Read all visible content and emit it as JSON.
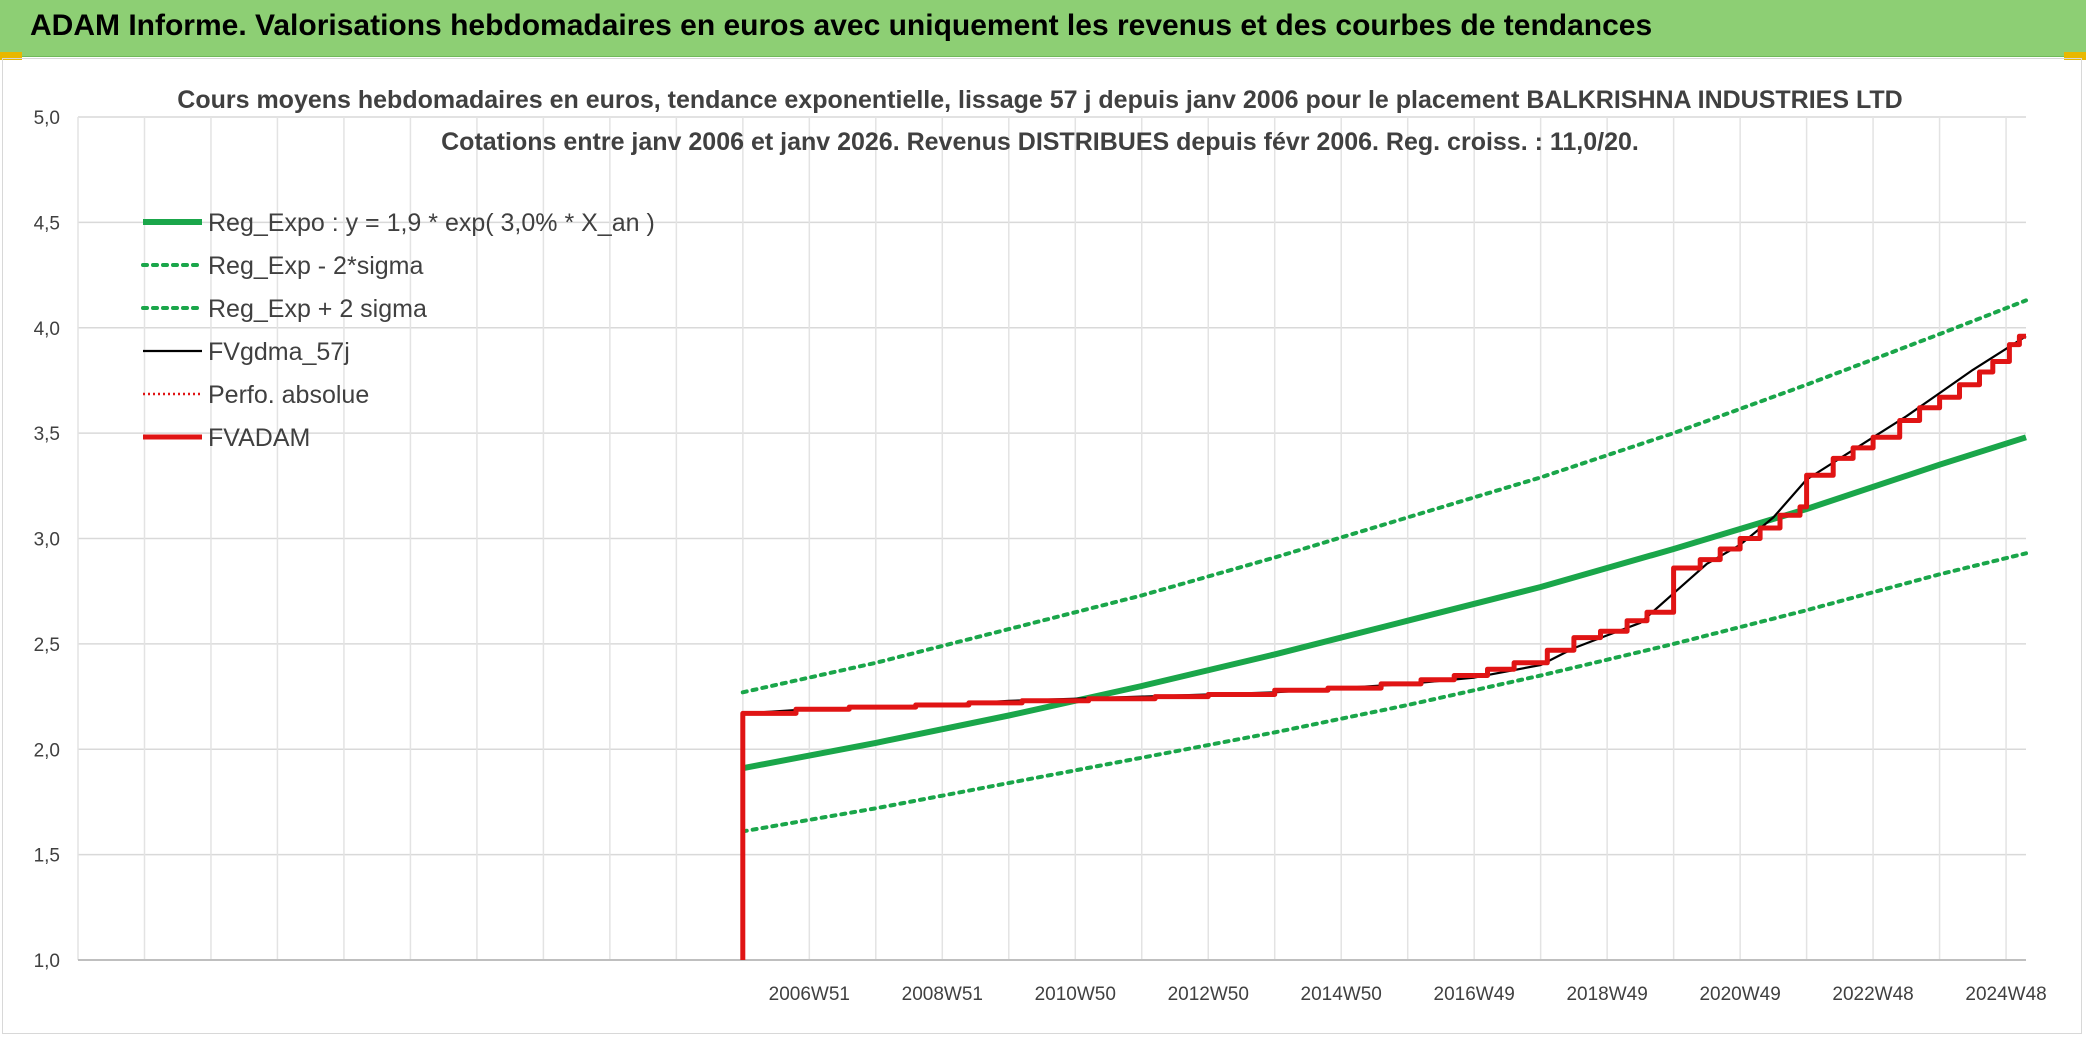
{
  "header": {
    "title": "ADAM Informe. Valorisations hebdomadaires en euros avec uniquement les revenus et des courbes de tendances"
  },
  "chart_data": {
    "type": "line",
    "title_line1": "Cours moyens hebdomadaires en euros, tendance exponentielle, lissage 57 j depuis janv 2006 pour le placement BALKRISHNA INDUSTRIES LTD",
    "title_line2": "Cotations entre janv 2006 et janv 2026. Revenus DISTRIBUES depuis févr 2006. Reg. croiss. : 11,0/20.",
    "ylim": [
      1.0,
      5.0
    ],
    "xlim": [
      1996.0,
      2025.3
    ],
    "y_ticks": [
      {
        "value": 1.0,
        "label": "1,0"
      },
      {
        "value": 1.5,
        "label": "1,5"
      },
      {
        "value": 2.0,
        "label": "2,0"
      },
      {
        "value": 2.5,
        "label": "2,5"
      },
      {
        "value": 3.0,
        "label": "3,0"
      },
      {
        "value": 3.5,
        "label": "3,5"
      },
      {
        "value": 4.0,
        "label": "4,0"
      },
      {
        "value": 4.5,
        "label": "4,5"
      },
      {
        "value": 5.0,
        "label": "5,0"
      }
    ],
    "x_ticks": [
      {
        "value": 2007,
        "label": "2006W51"
      },
      {
        "value": 2009,
        "label": "2008W51"
      },
      {
        "value": 2011,
        "label": "2010W50"
      },
      {
        "value": 2013,
        "label": "2012W50"
      },
      {
        "value": 2015,
        "label": "2014W50"
      },
      {
        "value": 2017,
        "label": "2016W49"
      },
      {
        "value": 2019,
        "label": "2018W49"
      },
      {
        "value": 2021,
        "label": "2020W49"
      },
      {
        "value": 2023,
        "label": "2022W48"
      },
      {
        "value": 2025,
        "label": "2024W48"
      }
    ],
    "grid": true,
    "legend_position": "top-left",
    "series": [
      {
        "name": "Reg_Expo : y = 1,9 * exp( 3,0% *  X_an )",
        "color": "#1aa64a",
        "style": "solid-thick",
        "points": [
          [
            2006.0,
            1.91
          ],
          [
            2008.0,
            2.03
          ],
          [
            2010.0,
            2.16
          ],
          [
            2012.0,
            2.3
          ],
          [
            2014.0,
            2.45
          ],
          [
            2016.0,
            2.61
          ],
          [
            2018.0,
            2.77
          ],
          [
            2020.0,
            2.95
          ],
          [
            2022.0,
            3.14
          ],
          [
            2024.0,
            3.35
          ],
          [
            2025.3,
            3.48
          ]
        ]
      },
      {
        "name": "Reg_Exp - 2*sigma",
        "color": "#1aa64a",
        "style": "dotted",
        "points": [
          [
            2006.0,
            1.61
          ],
          [
            2008.0,
            1.72
          ],
          [
            2010.0,
            1.84
          ],
          [
            2012.0,
            1.96
          ],
          [
            2014.0,
            2.08
          ],
          [
            2016.0,
            2.21
          ],
          [
            2018.0,
            2.35
          ],
          [
            2020.0,
            2.5
          ],
          [
            2022.0,
            2.66
          ],
          [
            2024.0,
            2.83
          ],
          [
            2025.3,
            2.93
          ]
        ]
      },
      {
        "name": "Reg_Exp + 2 sigma",
        "color": "#1aa64a",
        "style": "dotted",
        "points": [
          [
            2006.0,
            2.27
          ],
          [
            2008.0,
            2.41
          ],
          [
            2010.0,
            2.57
          ],
          [
            2012.0,
            2.73
          ],
          [
            2014.0,
            2.91
          ],
          [
            2016.0,
            3.1
          ],
          [
            2018.0,
            3.29
          ],
          [
            2020.0,
            3.5
          ],
          [
            2022.0,
            3.73
          ],
          [
            2024.0,
            3.97
          ],
          [
            2025.3,
            4.13
          ]
        ]
      },
      {
        "name": "FVgdma_57j",
        "color": "#000000",
        "style": "solid-thin",
        "points": [
          [
            2006.0,
            2.17
          ],
          [
            2007.0,
            2.19
          ],
          [
            2008.0,
            2.2
          ],
          [
            2009.0,
            2.21
          ],
          [
            2010.0,
            2.23
          ],
          [
            2011.0,
            2.24
          ],
          [
            2012.0,
            2.25
          ],
          [
            2013.0,
            2.26
          ],
          [
            2014.0,
            2.27
          ],
          [
            2015.0,
            2.29
          ],
          [
            2016.0,
            2.31
          ],
          [
            2017.0,
            2.34
          ],
          [
            2018.0,
            2.4
          ],
          [
            2018.5,
            2.48
          ],
          [
            2019.0,
            2.54
          ],
          [
            2019.5,
            2.6
          ],
          [
            2020.0,
            2.74
          ],
          [
            2020.5,
            2.88
          ],
          [
            2021.0,
            2.97
          ],
          [
            2021.5,
            3.1
          ],
          [
            2022.0,
            3.28
          ],
          [
            2022.5,
            3.38
          ],
          [
            2023.0,
            3.48
          ],
          [
            2023.5,
            3.58
          ],
          [
            2024.0,
            3.69
          ],
          [
            2024.5,
            3.8
          ],
          [
            2025.0,
            3.9
          ],
          [
            2025.3,
            3.96
          ]
        ]
      },
      {
        "name": "Perfo. absolue",
        "color": "#e01414",
        "style": "dotted",
        "points": []
      },
      {
        "name": "FVADAM",
        "color": "#e01414",
        "style": "solid-thick",
        "points": [
          [
            2006.0,
            1.0
          ],
          [
            2006.0,
            2.17
          ],
          [
            2006.8,
            2.17
          ],
          [
            2006.8,
            2.19
          ],
          [
            2007.6,
            2.19
          ],
          [
            2007.6,
            2.2
          ],
          [
            2008.6,
            2.2
          ],
          [
            2008.6,
            2.21
          ],
          [
            2009.4,
            2.21
          ],
          [
            2009.4,
            2.22
          ],
          [
            2010.2,
            2.22
          ],
          [
            2010.2,
            2.23
          ],
          [
            2011.2,
            2.23
          ],
          [
            2011.2,
            2.24
          ],
          [
            2012.2,
            2.24
          ],
          [
            2012.2,
            2.25
          ],
          [
            2013.0,
            2.25
          ],
          [
            2013.0,
            2.26
          ],
          [
            2014.0,
            2.26
          ],
          [
            2014.0,
            2.28
          ],
          [
            2014.8,
            2.28
          ],
          [
            2014.8,
            2.29
          ],
          [
            2015.6,
            2.29
          ],
          [
            2015.6,
            2.31
          ],
          [
            2016.2,
            2.31
          ],
          [
            2016.2,
            2.33
          ],
          [
            2016.7,
            2.33
          ],
          [
            2016.7,
            2.35
          ],
          [
            2017.2,
            2.35
          ],
          [
            2017.2,
            2.38
          ],
          [
            2017.6,
            2.38
          ],
          [
            2017.6,
            2.41
          ],
          [
            2018.1,
            2.41
          ],
          [
            2018.1,
            2.47
          ],
          [
            2018.5,
            2.47
          ],
          [
            2018.5,
            2.53
          ],
          [
            2018.9,
            2.53
          ],
          [
            2018.9,
            2.56
          ],
          [
            2019.3,
            2.56
          ],
          [
            2019.3,
            2.61
          ],
          [
            2019.6,
            2.61
          ],
          [
            2019.6,
            2.65
          ],
          [
            2020.0,
            2.65
          ],
          [
            2020.0,
            2.86
          ],
          [
            2020.4,
            2.86
          ],
          [
            2020.4,
            2.9
          ],
          [
            2020.7,
            2.9
          ],
          [
            2020.7,
            2.95
          ],
          [
            2021.0,
            2.95
          ],
          [
            2021.0,
            3.0
          ],
          [
            2021.3,
            3.0
          ],
          [
            2021.3,
            3.05
          ],
          [
            2021.6,
            3.05
          ],
          [
            2021.6,
            3.11
          ],
          [
            2021.9,
            3.11
          ],
          [
            2021.9,
            3.15
          ],
          [
            2022.0,
            3.15
          ],
          [
            2022.0,
            3.3
          ],
          [
            2022.4,
            3.3
          ],
          [
            2022.4,
            3.38
          ],
          [
            2022.7,
            3.38
          ],
          [
            2022.7,
            3.43
          ],
          [
            2023.0,
            3.43
          ],
          [
            2023.0,
            3.48
          ],
          [
            2023.4,
            3.48
          ],
          [
            2023.4,
            3.56
          ],
          [
            2023.7,
            3.56
          ],
          [
            2023.7,
            3.62
          ],
          [
            2024.0,
            3.62
          ],
          [
            2024.0,
            3.67
          ],
          [
            2024.3,
            3.67
          ],
          [
            2024.3,
            3.73
          ],
          [
            2024.6,
            3.73
          ],
          [
            2024.6,
            3.79
          ],
          [
            2024.8,
            3.79
          ],
          [
            2024.8,
            3.84
          ],
          [
            2025.05,
            3.84
          ],
          [
            2025.05,
            3.92
          ],
          [
            2025.2,
            3.92
          ],
          [
            2025.2,
            3.96
          ],
          [
            2025.3,
            3.96
          ]
        ]
      }
    ]
  }
}
